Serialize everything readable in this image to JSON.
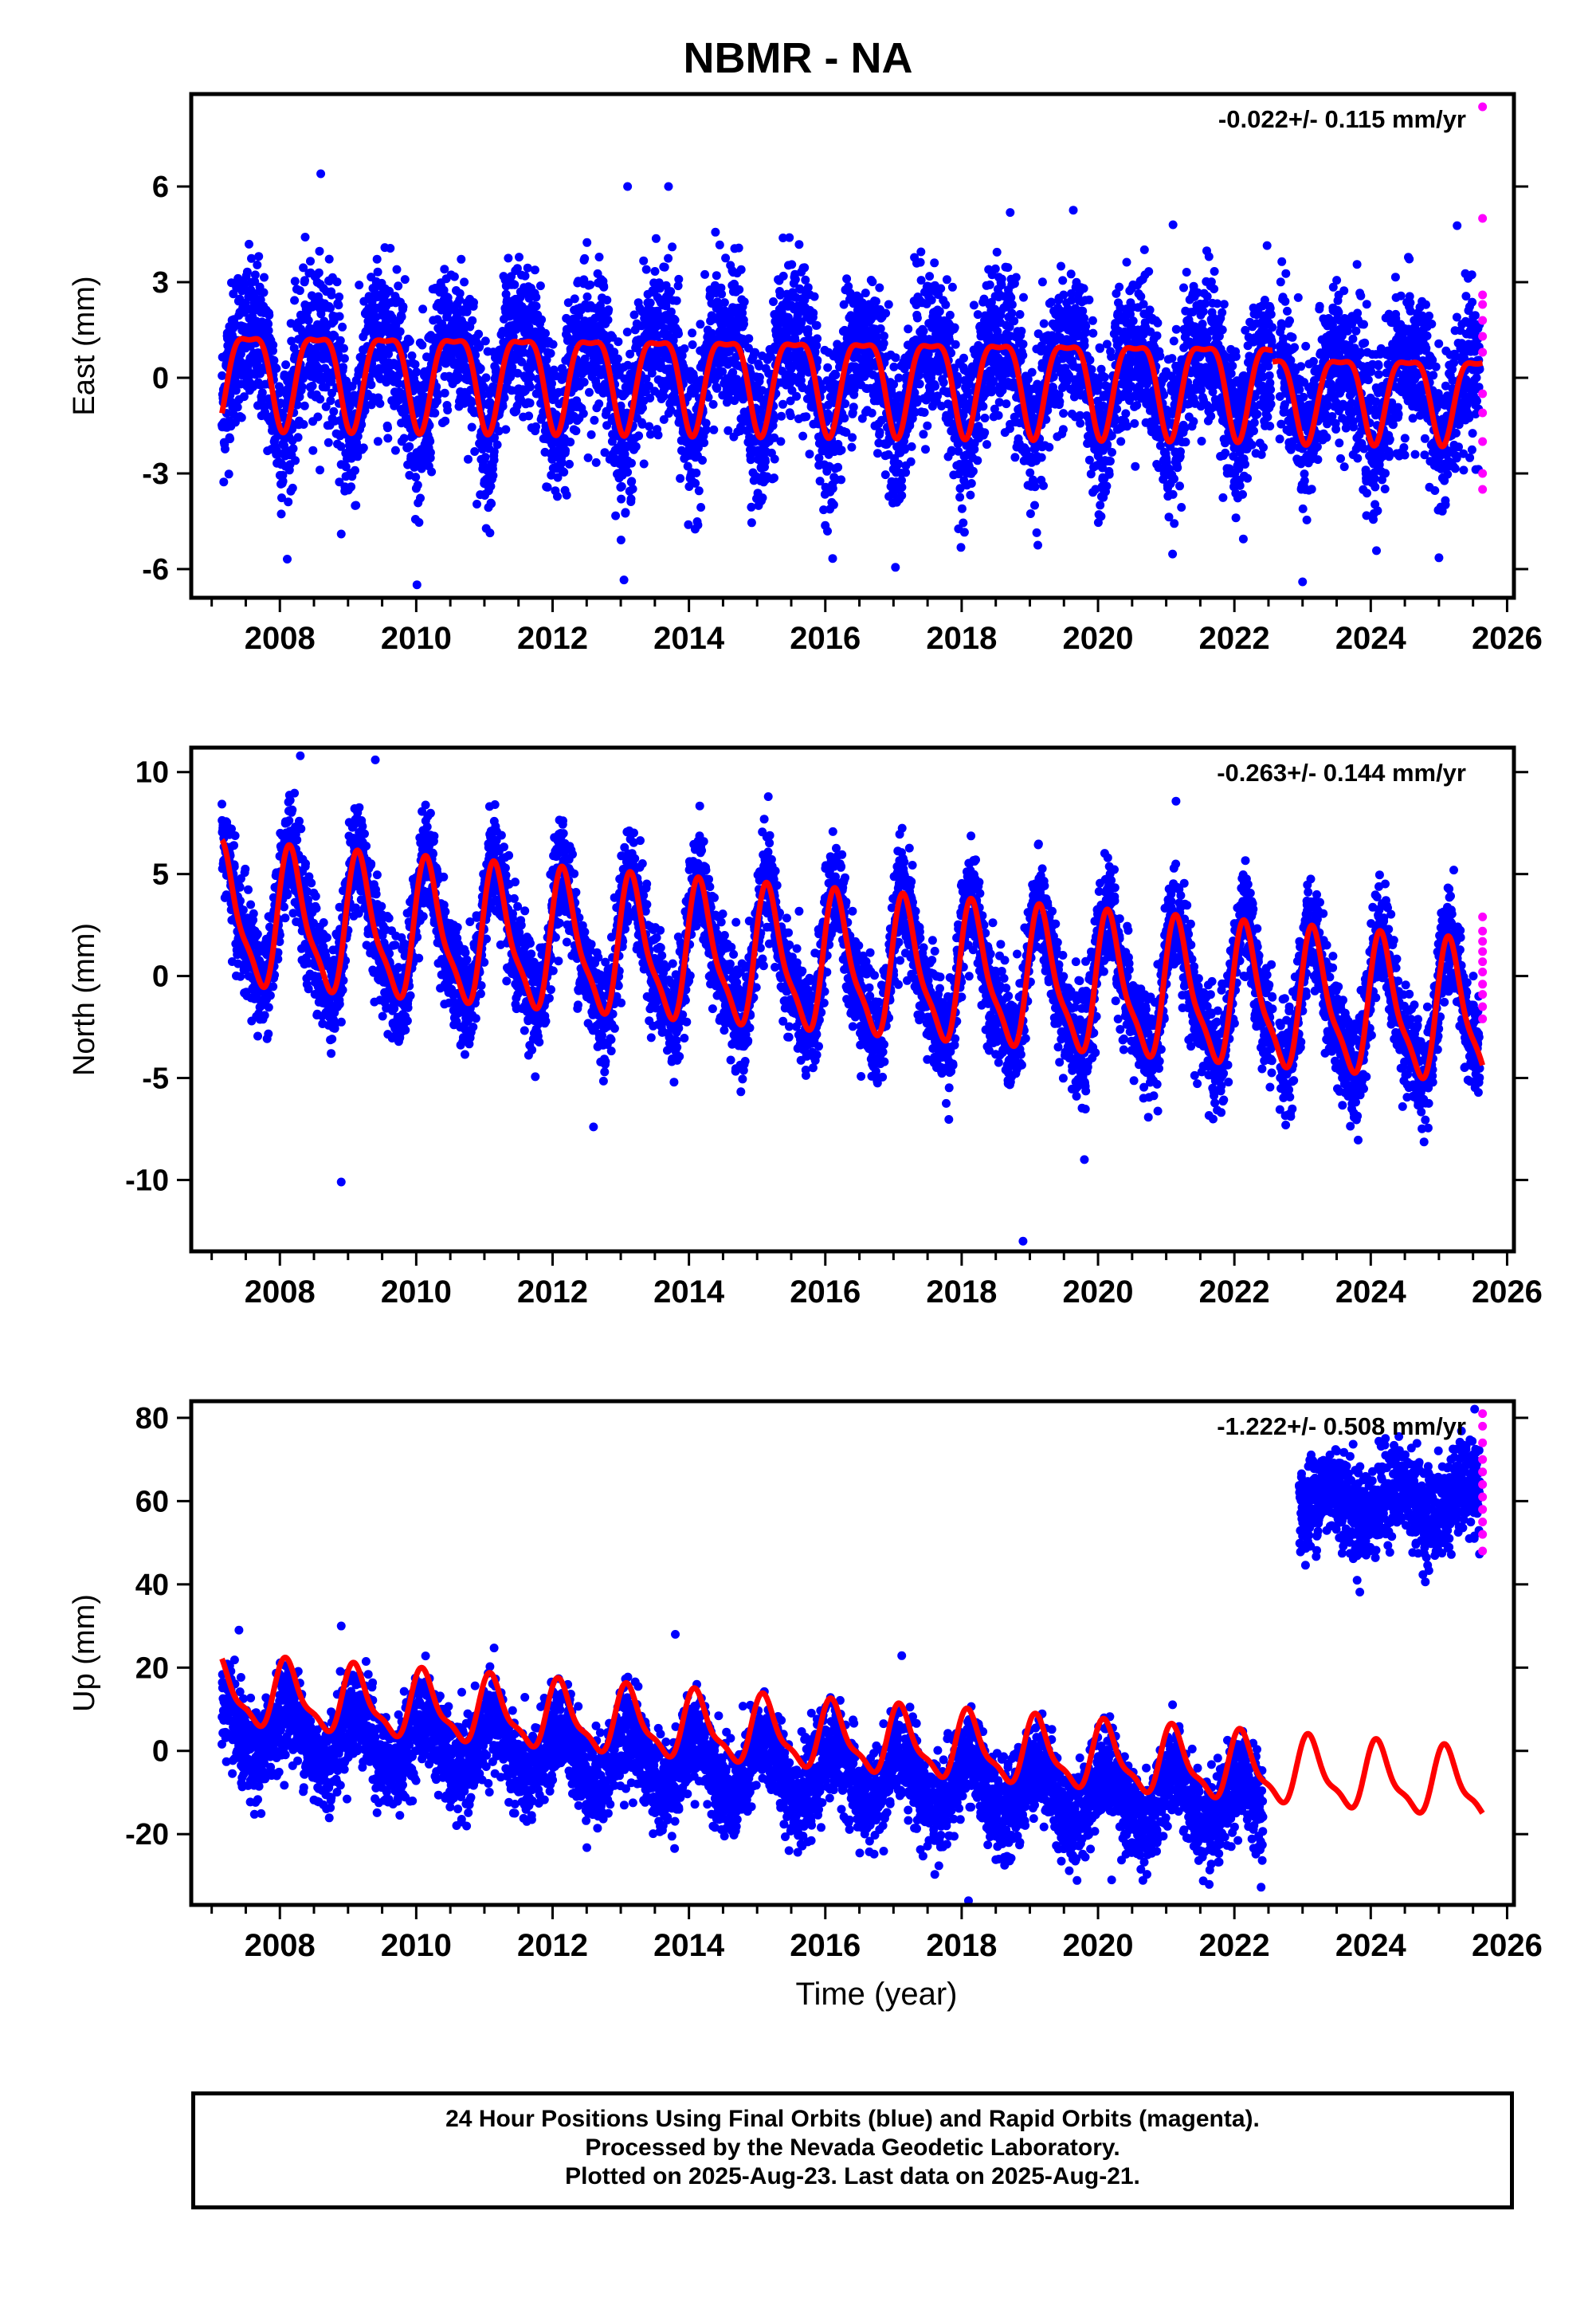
{
  "title": "NBMR - NA",
  "colors": {
    "final": "#0000ff",
    "rapid": "#ff00ff",
    "model": "#ff0000",
    "axis": "#000000"
  },
  "x_label": "Time (year)",
  "footer": [
    "24 Hour Positions Using Final Orbits (blue) and Rapid Orbits (magenta).",
    "Processed by the Nevada Geodetic Laboratory.",
    "Plotted on 2025-Aug-23. Last data on 2025-Aug-21."
  ],
  "chart_data": [
    {
      "type": "scatter",
      "component": "east",
      "ylabel": "East (mm)",
      "rate_text": "-0.022+/- 0.115 mm/yr",
      "xlim": [
        2006.7,
        2026.1
      ],
      "ylim": [
        -6.9,
        8.9
      ],
      "xticks": [
        2008,
        2010,
        2012,
        2014,
        2016,
        2018,
        2020,
        2022,
        2024,
        2026
      ],
      "yticks": [
        -6,
        -3,
        0,
        3,
        6
      ],
      "data_start": 2007.15,
      "data_end": 2025.64,
      "final_end": 2025.6,
      "gaps": [
        [
          2022.56,
          2022.66
        ]
      ],
      "series": [
        {
          "role": "model",
          "segments": [
            {
              "start": 2007.15,
              "end": 2022.56,
              "offset": 0.2,
              "rate": -0.022,
              "ann_amp": 1.45,
              "ann_phase": 0.55,
              "semi_amp": 0.45,
              "semi_phase": 0.3
            },
            {
              "start": 2022.56,
              "end": 2025.64,
              "offset": -0.4,
              "rate": -0.022,
              "ann_amp": 1.3,
              "ann_phase": 0.55,
              "semi_amp": 0.4,
              "semi_phase": 0.3
            }
          ]
        },
        {
          "role": "final",
          "scatter_sd": 1.2,
          "outliers": [
            [
              2008.6,
              6.4
            ],
            [
              2013.1,
              6.0
            ],
            [
              2013.7,
              6.0
            ],
            [
              2023.0,
              -6.4
            ],
            [
              2008.9,
              -4.9
            ],
            [
              2021.1,
              4.8
            ]
          ]
        },
        {
          "role": "rapid",
          "y": [
            8.5,
            5.0,
            2.6,
            2.3,
            1.8,
            1.3,
            0.8,
            -0.5,
            -1.1,
            -2.0,
            -3.0,
            -3.5
          ]
        }
      ]
    },
    {
      "type": "scatter",
      "component": "north",
      "ylabel": "North (mm)",
      "rate_text": "-0.263+/- 0.144 mm/yr",
      "xlim": [
        2006.7,
        2026.1
      ],
      "ylim": [
        -13.5,
        11.2
      ],
      "xticks": [
        2008,
        2010,
        2012,
        2014,
        2016,
        2018,
        2020,
        2022,
        2024,
        2026
      ],
      "yticks": [
        -10,
        -5,
        0,
        5,
        10
      ],
      "data_start": 2007.15,
      "data_end": 2025.64,
      "final_end": 2025.6,
      "gaps": [
        [
          2022.56,
          2022.66
        ]
      ],
      "series": [
        {
          "role": "model",
          "segments": [
            {
              "start": 2007.15,
              "end": 2025.64,
              "offset": 2.8,
              "rate": -0.263,
              "ann_amp": 3.2,
              "ann_phase": 0.18,
              "semi_amp": 0.9,
              "semi_phase": 0.1
            }
          ]
        },
        {
          "role": "final",
          "scatter_sd": 1.3,
          "outliers": [
            [
              2008.3,
              10.8
            ],
            [
              2009.4,
              10.6
            ],
            [
              2008.9,
              -10.1
            ],
            [
              2018.9,
              -13.0
            ],
            [
              2012.6,
              -7.4
            ],
            [
              2019.8,
              -9.0
            ]
          ]
        },
        {
          "role": "rapid",
          "y": [
            2.9,
            2.2,
            1.7,
            1.2,
            0.7,
            0.2,
            -0.4,
            -0.9,
            -1.5,
            -2.1
          ]
        }
      ]
    },
    {
      "type": "scatter",
      "component": "up",
      "ylabel": "Up (mm)",
      "rate_text": "-1.222+/- 0.508 mm/yr",
      "xlim": [
        2006.7,
        2026.1
      ],
      "ylim": [
        -37,
        84
      ],
      "xticks": [
        2008,
        2010,
        2012,
        2014,
        2016,
        2018,
        2020,
        2022,
        2024,
        2026
      ],
      "yticks": [
        -20,
        0,
        20,
        40,
        60,
        80
      ],
      "data_start": 2007.15,
      "data_end": 2025.64,
      "final_end": 2025.6,
      "gaps": [
        [
          2022.42,
          2022.95
        ]
      ],
      "series": [
        {
          "role": "model",
          "segments": [
            {
              "start": 2007.15,
              "end": 2025.64,
              "offset": 14.0,
              "rate": -1.222,
              "ann_amp": 7.5,
              "ann_phase": 0.12,
              "semi_amp": 2.5,
              "semi_phase": 0.05
            }
          ]
        },
        {
          "role": "final",
          "scatter_sd": 5.5,
          "segments": [
            {
              "start": 2007.15,
              "end": 2022.42,
              "offset": 5.0,
              "rate": -1.222,
              "ann_amp": 6.5,
              "ann_phase": 0.12
            },
            {
              "start": 2022.95,
              "end": 2025.6,
              "offset": 60.0,
              "rate": 0.0,
              "ann_amp": 3.5,
              "ann_phase": 0.4
            }
          ],
          "outliers": [
            [
              2007.4,
              29.0
            ],
            [
              2008.9,
              30.0
            ],
            [
              2013.8,
              28.0
            ],
            [
              2018.1,
              -36.0
            ],
            [
              2023.8,
              41.0
            ],
            [
              2020.2,
              -31.0
            ]
          ]
        },
        {
          "role": "rapid",
          "y": [
            81.0,
            78.0,
            74.0,
            70.0,
            67.0,
            64.0,
            61.0,
            58.0,
            55.0,
            52.0,
            48.0
          ]
        }
      ]
    }
  ]
}
